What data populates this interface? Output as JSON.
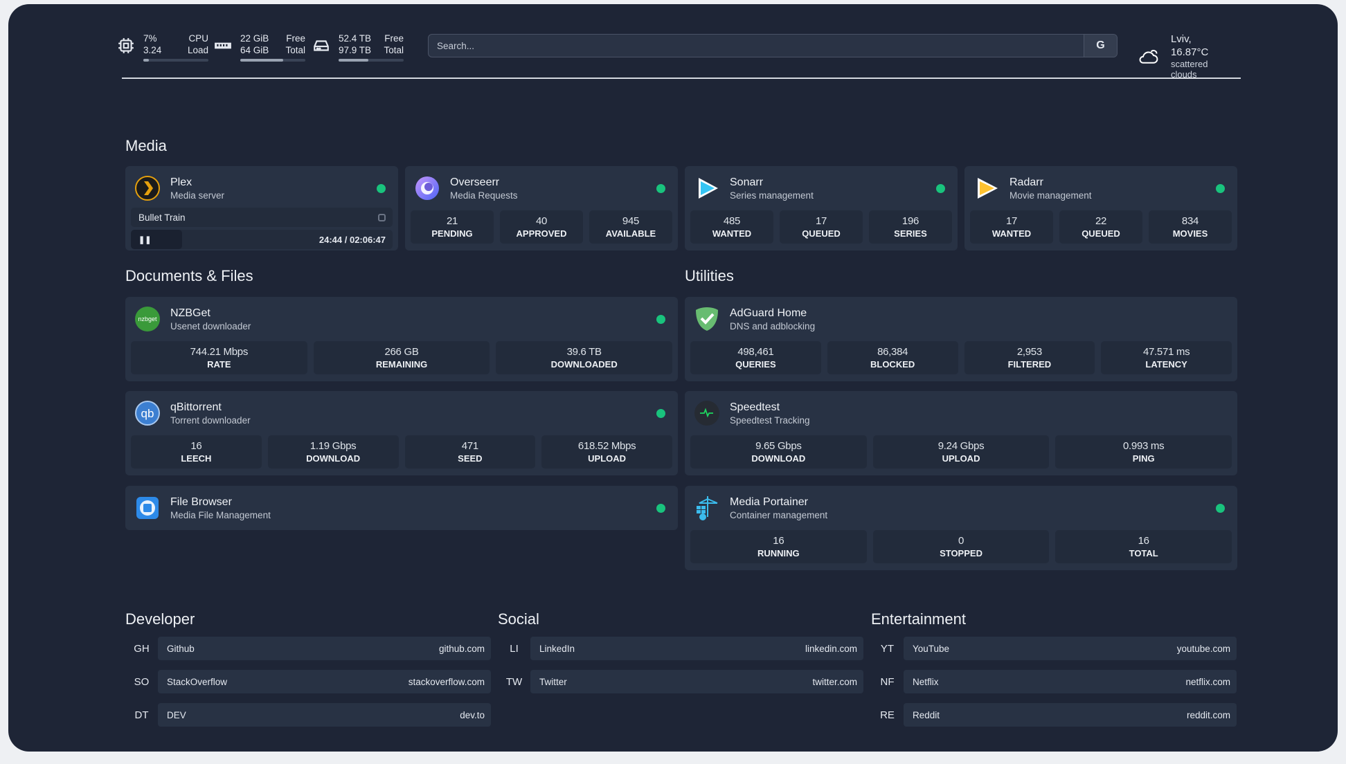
{
  "header": {
    "cpu": {
      "icon": "cpu-icon",
      "v1": "7%",
      "v2": "3.24",
      "l1": "CPU",
      "l2": "Load",
      "fill": 0.07
    },
    "memory": {
      "icon": "memory-icon",
      "v1": "22 GiB",
      "v2": "64 GiB",
      "l1": "Free",
      "l2": "Total",
      "fill": 0.66
    },
    "disk": {
      "icon": "disk-icon",
      "v1": "52.4 TB",
      "v2": "97.9 TB",
      "l1": "Free",
      "l2": "Total",
      "fill": 0.46
    },
    "search": {
      "placeholder": "Search...",
      "engine": "G"
    },
    "weather": {
      "icon": "cloud-icon",
      "location": "Lviv, 16.87°C",
      "condition": "scattered clouds"
    }
  },
  "sections": {
    "media": "Media",
    "docs": "Documents & Files",
    "utilities": "Utilities",
    "developer": "Developer",
    "social": "Social",
    "entertainment": "Entertainment"
  },
  "status_color": "#19c37d",
  "services": {
    "plex": {
      "name": "Plex",
      "desc": "Media server",
      "icon": "plex-icon",
      "now_playing": {
        "title": "Bullet Train",
        "time": "24:44 / 02:06:47",
        "progress": 0.195
      }
    },
    "overseerr": {
      "name": "Overseerr",
      "desc": "Media Requests",
      "icon": "overseerr-icon",
      "stats": [
        {
          "v": "21",
          "l": "PENDING"
        },
        {
          "v": "40",
          "l": "APPROVED"
        },
        {
          "v": "945",
          "l": "AVAILABLE"
        }
      ]
    },
    "sonarr": {
      "name": "Sonarr",
      "desc": "Series management",
      "icon": "sonarr-icon",
      "stats": [
        {
          "v": "485",
          "l": "WANTED"
        },
        {
          "v": "17",
          "l": "QUEUED"
        },
        {
          "v": "196",
          "l": "SERIES"
        }
      ]
    },
    "radarr": {
      "name": "Radarr",
      "desc": "Movie management",
      "icon": "radarr-icon",
      "stats": [
        {
          "v": "17",
          "l": "WANTED"
        },
        {
          "v": "22",
          "l": "QUEUED"
        },
        {
          "v": "834",
          "l": "MOVIES"
        }
      ]
    },
    "nzbget": {
      "name": "NZBGet",
      "desc": "Usenet downloader",
      "icon": "nzbget-icon",
      "stats": [
        {
          "v": "744.21 Mbps",
          "l": "RATE"
        },
        {
          "v": "266 GB",
          "l": "REMAINING"
        },
        {
          "v": "39.6 TB",
          "l": "DOWNLOADED"
        }
      ]
    },
    "qbittorrent": {
      "name": "qBittorrent",
      "desc": "Torrent downloader",
      "icon": "qbittorrent-icon",
      "stats": [
        {
          "v": "16",
          "l": "LEECH"
        },
        {
          "v": "1.19 Gbps",
          "l": "DOWNLOAD"
        },
        {
          "v": "471",
          "l": "SEED"
        },
        {
          "v": "618.52 Mbps",
          "l": "UPLOAD"
        }
      ]
    },
    "filebrowser": {
      "name": "File Browser",
      "desc": "Media File Management",
      "icon": "filebrowser-icon"
    },
    "adguard": {
      "name": "AdGuard Home",
      "desc": "DNS and adblocking",
      "icon": "adguard-icon",
      "stats": [
        {
          "v": "498,461",
          "l": "QUERIES"
        },
        {
          "v": "86,384",
          "l": "BLOCKED"
        },
        {
          "v": "2,953",
          "l": "FILTERED"
        },
        {
          "v": "47.571 ms",
          "l": "LATENCY"
        }
      ]
    },
    "speedtest": {
      "name": "Speedtest",
      "desc": "Speedtest Tracking",
      "icon": "speedtest-icon",
      "stats": [
        {
          "v": "9.65 Gbps",
          "l": "DOWNLOAD"
        },
        {
          "v": "9.24 Gbps",
          "l": "UPLOAD"
        },
        {
          "v": "0.993 ms",
          "l": "PING"
        }
      ]
    },
    "portainer": {
      "name": "Media Portainer",
      "desc": "Container management",
      "icon": "portainer-icon",
      "stats": [
        {
          "v": "16",
          "l": "RUNNING"
        },
        {
          "v": "0",
          "l": "STOPPED"
        },
        {
          "v": "16",
          "l": "TOTAL"
        }
      ]
    }
  },
  "bookmarks": {
    "developer": [
      {
        "abbr": "GH",
        "name": "Github",
        "url": "github.com"
      },
      {
        "abbr": "SO",
        "name": "StackOverflow",
        "url": "stackoverflow.com"
      },
      {
        "abbr": "DT",
        "name": "DEV",
        "url": "dev.to"
      }
    ],
    "social": [
      {
        "abbr": "LI",
        "name": "LinkedIn",
        "url": "linkedin.com"
      },
      {
        "abbr": "TW",
        "name": "Twitter",
        "url": "twitter.com"
      }
    ],
    "entertainment": [
      {
        "abbr": "YT",
        "name": "YouTube",
        "url": "youtube.com"
      },
      {
        "abbr": "NF",
        "name": "Netflix",
        "url": "netflix.com"
      },
      {
        "abbr": "RE",
        "name": "Reddit",
        "url": "reddit.com"
      }
    ]
  }
}
